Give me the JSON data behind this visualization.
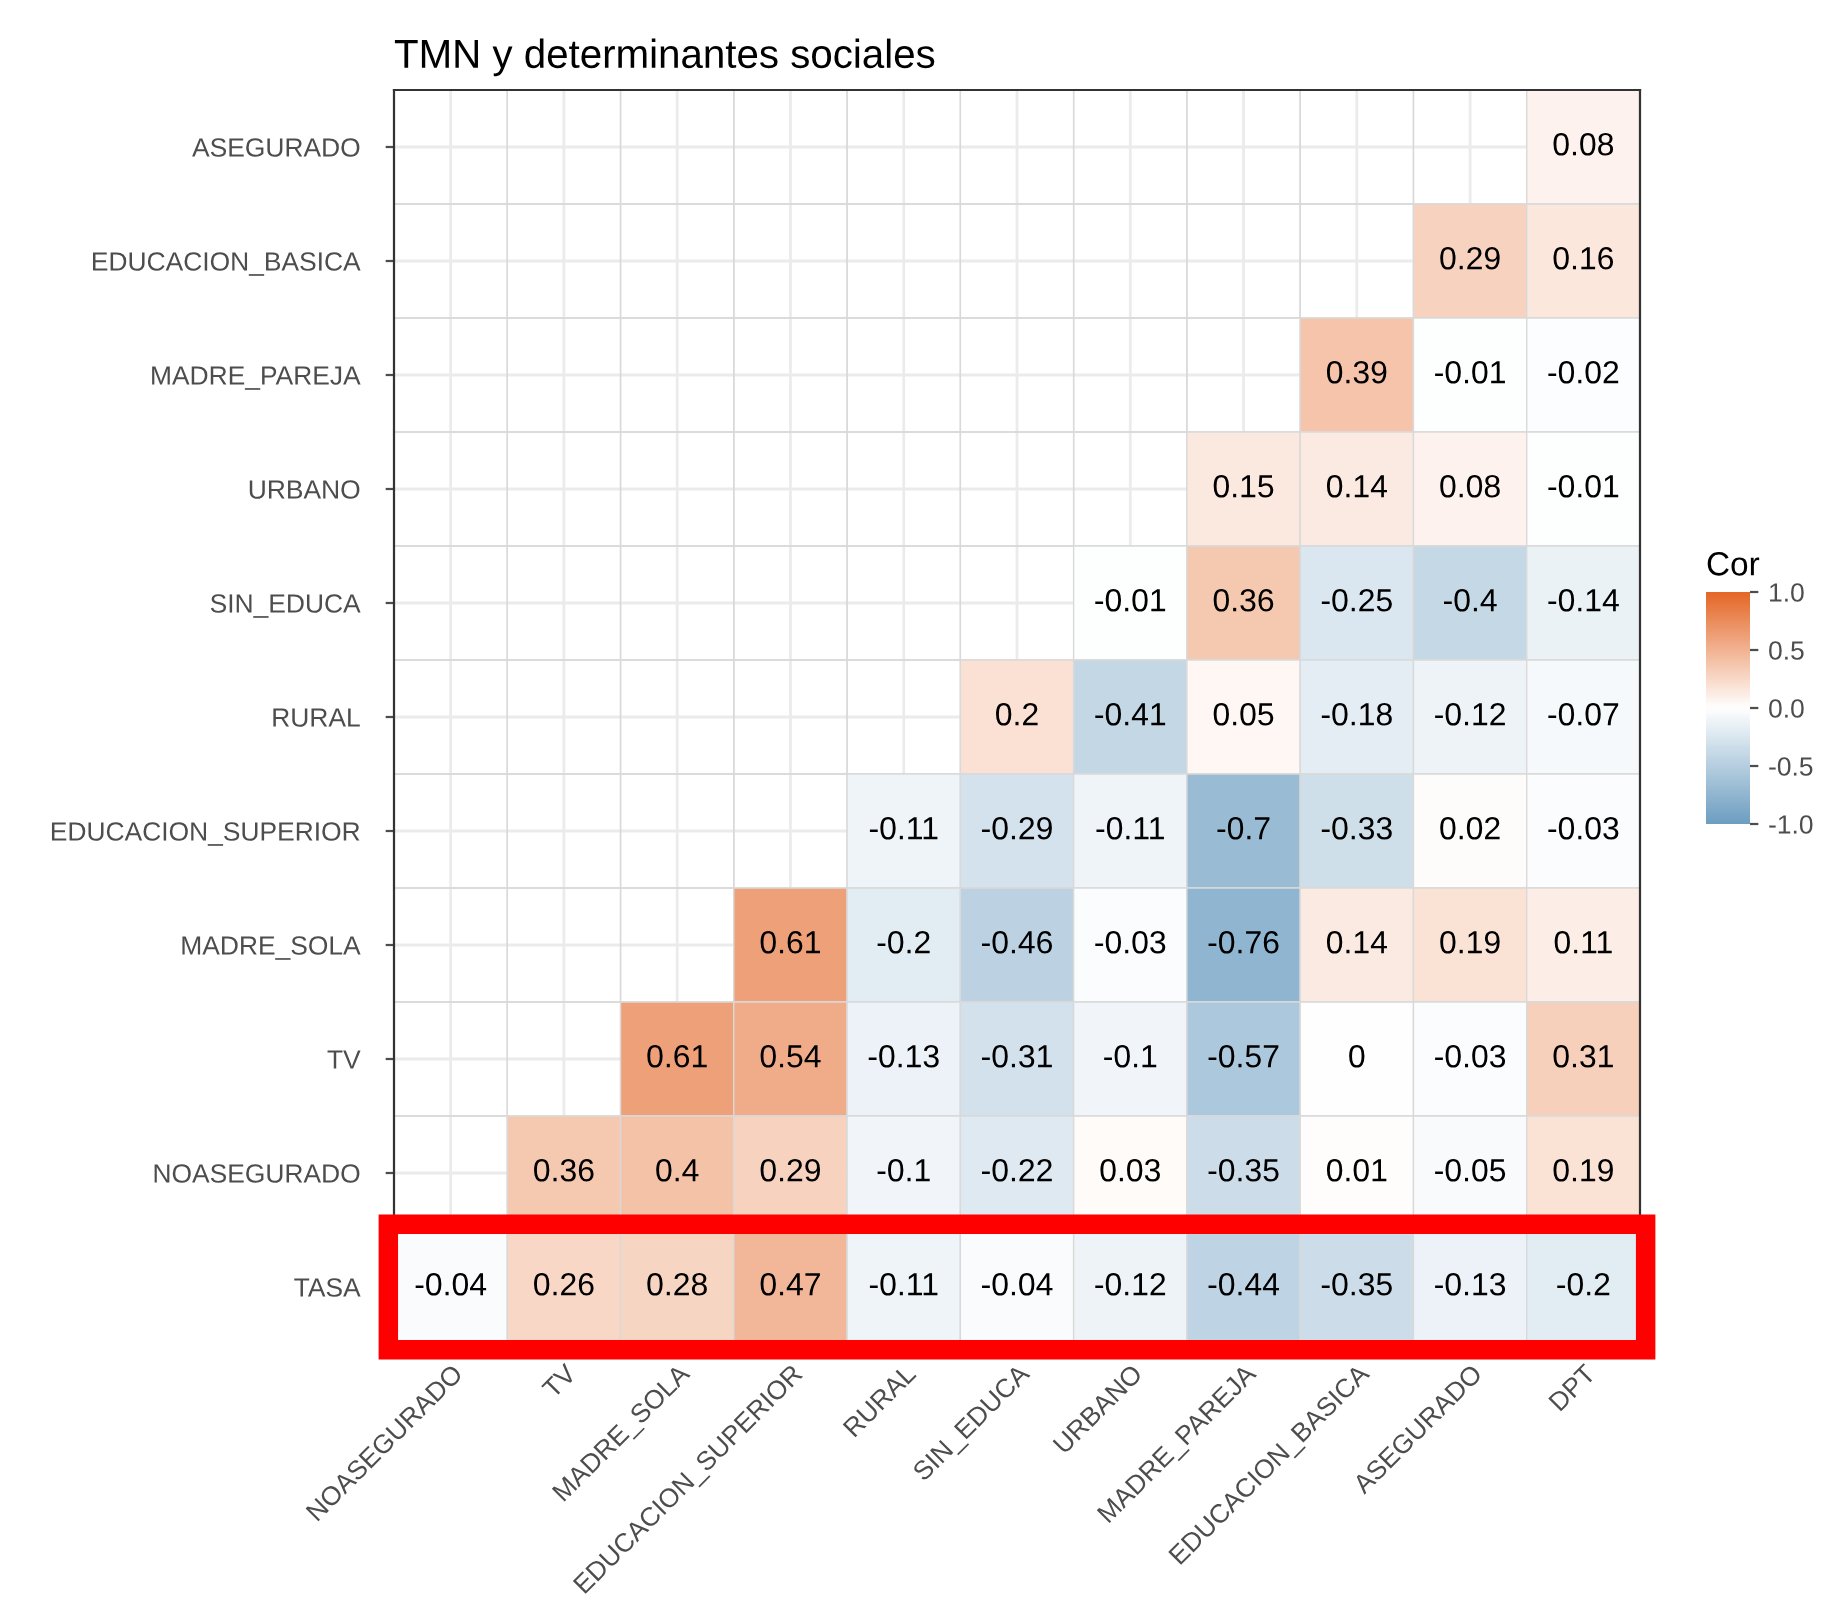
{
  "chart_data": {
    "type": "heatmap",
    "title": "TMN y determinantes sociales",
    "clabel": "Cor",
    "categories": [
      "NOASEGURADO",
      "TV",
      "MADRE_SOLA",
      "EDUCACION_SUPERIOR",
      "RURAL",
      "SIN_EDUCA",
      "URBANO",
      "MADRE_PAREJA",
      "EDUCACION_BASICA",
      "ASEGURADO",
      "DPT"
    ],
    "y_categories": [
      "ASEGURADO",
      "EDUCACION_BASICA",
      "MADRE_PAREJA",
      "URBANO",
      "SIN_EDUCA",
      "RURAL",
      "EDUCACION_SUPERIOR",
      "MADRE_SOLA",
      "TV",
      "NOASEGURADO",
      "TASA"
    ],
    "cells": [
      [
        null,
        null,
        null,
        null,
        null,
        null,
        null,
        null,
        null,
        null,
        0.08
      ],
      [
        null,
        null,
        null,
        null,
        null,
        null,
        null,
        null,
        null,
        0.29,
        0.16
      ],
      [
        null,
        null,
        null,
        null,
        null,
        null,
        null,
        null,
        0.39,
        -0.01,
        -0.02
      ],
      [
        null,
        null,
        null,
        null,
        null,
        null,
        null,
        0.15,
        0.14,
        0.08,
        -0.01
      ],
      [
        null,
        null,
        null,
        null,
        null,
        null,
        -0.01,
        0.36,
        -0.25,
        -0.4,
        -0.14
      ],
      [
        null,
        null,
        null,
        null,
        null,
        0.2,
        -0.41,
        0.05,
        -0.18,
        -0.12,
        -0.07
      ],
      [
        null,
        null,
        null,
        null,
        -0.11,
        -0.29,
        -0.11,
        -0.7,
        -0.33,
        0.02,
        -0.03
      ],
      [
        null,
        null,
        null,
        0.61,
        -0.2,
        -0.46,
        -0.03,
        -0.76,
        0.14,
        0.19,
        0.11
      ],
      [
        null,
        null,
        0.61,
        0.54,
        -0.13,
        -0.31,
        -0.1,
        -0.57,
        0,
        -0.03,
        0.31
      ],
      [
        null,
        0.36,
        0.4,
        0.29,
        -0.1,
        -0.22,
        0.03,
        -0.35,
        0.01,
        -0.05,
        0.19
      ],
      [
        -0.04,
        0.26,
        0.28,
        0.47,
        -0.11,
        -0.04,
        -0.12,
        -0.44,
        -0.35,
        -0.13,
        -0.2
      ]
    ],
    "colors": [
      "#6d9ec1",
      "#ffffff",
      "#e46726"
    ],
    "clim": [
      -1,
      1
    ],
    "cticks": [
      {
        "value": -1,
        "label": "-1.0"
      },
      {
        "value": -0.5,
        "label": "-0.5"
      },
      {
        "value": 0,
        "label": "0.0"
      },
      {
        "value": 0.5,
        "label": "0.5"
      },
      {
        "value": 1,
        "label": "1.0"
      }
    ],
    "data_labels": true,
    "grid": true
  }
}
